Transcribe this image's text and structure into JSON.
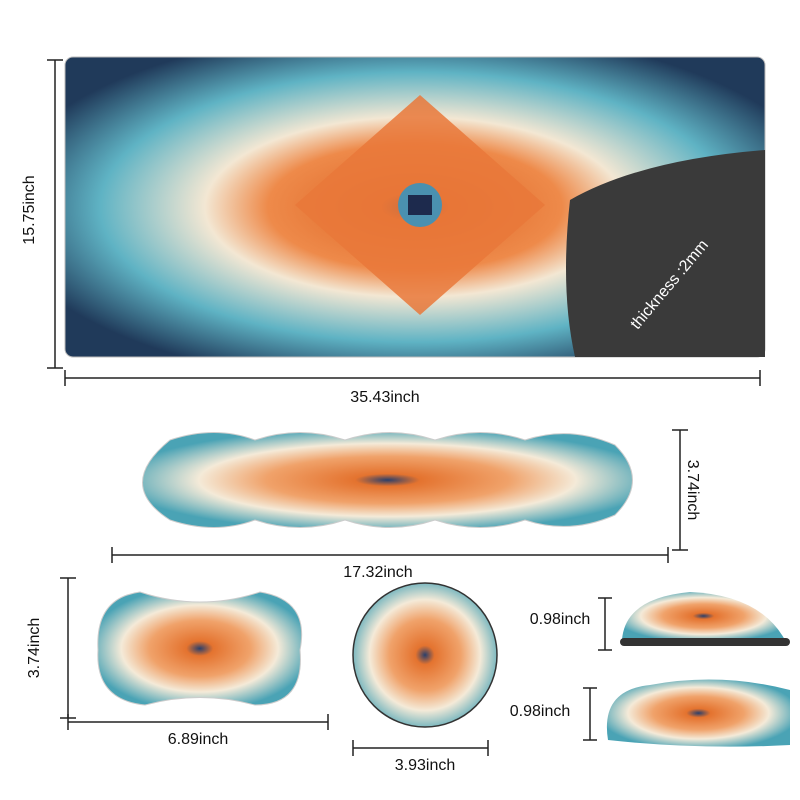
{
  "mousepad": {
    "height": "15.75inch",
    "width": "35.43inch",
    "thickness": "thickness :2mm"
  },
  "keyboard_rest": {
    "height": "3.74inch",
    "width": "17.32inch"
  },
  "mouse_rest": {
    "height": "3.74inch",
    "width": "6.89inch"
  },
  "coaster": {
    "width": "3.93inch"
  },
  "side_views": [
    {
      "height": "0.98inch"
    },
    {
      "height": "0.98inch"
    }
  ]
}
